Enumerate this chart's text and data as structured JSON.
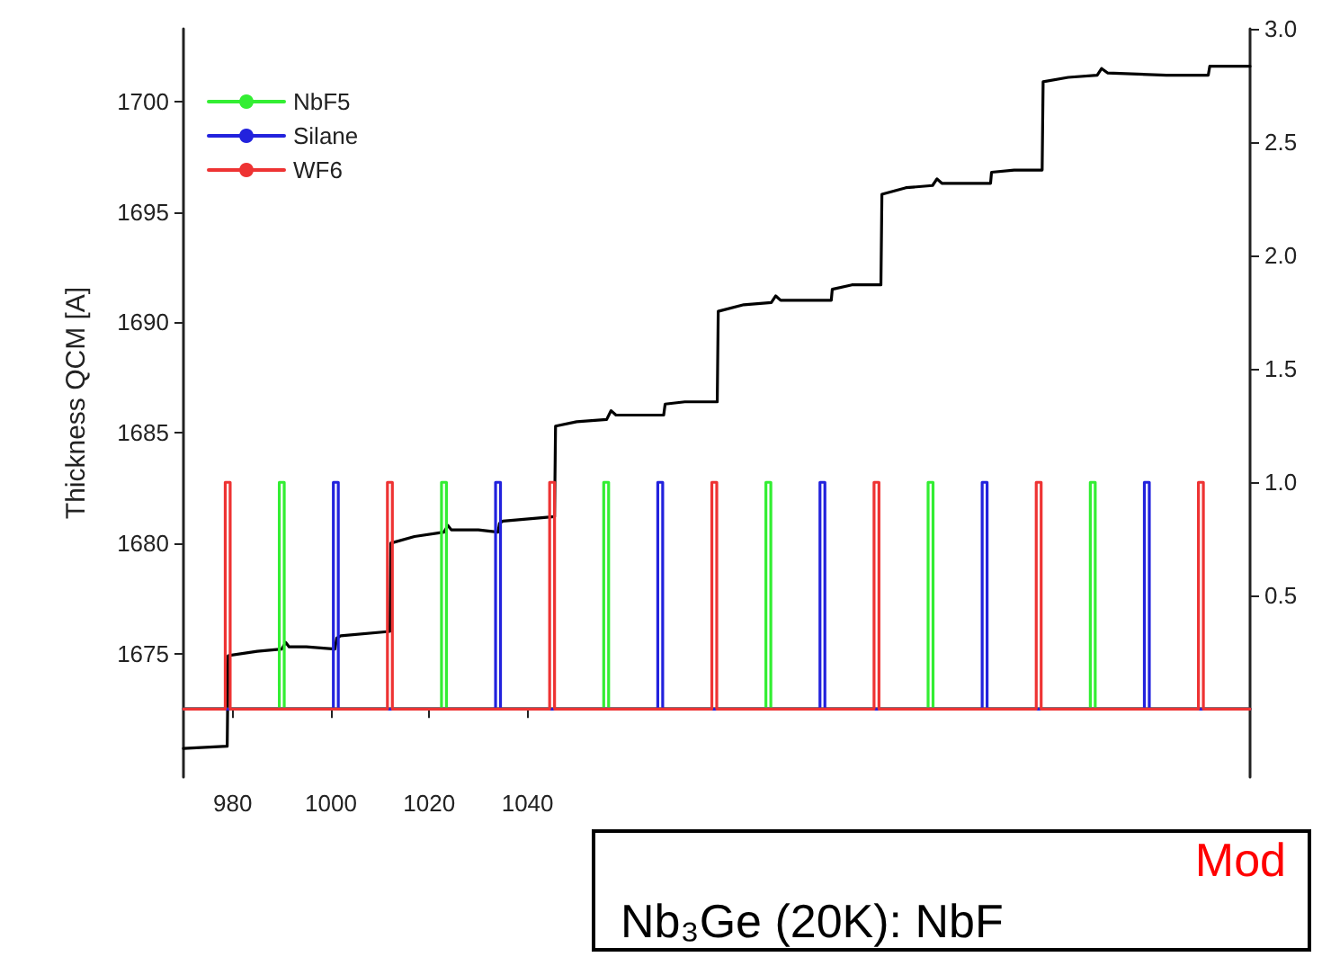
{
  "chart_data": {
    "type": "line",
    "ylabel": "Thickness QCM [A]",
    "xlim": [
      970,
      1187
    ],
    "xticks": [
      980,
      1000,
      1020,
      1040
    ],
    "ylim": [
      1669.4,
      1703.3
    ],
    "yticks": [
      1675,
      1680,
      1685,
      1690,
      1695,
      1700
    ],
    "y2lim": [
      -0.3,
      3.0
    ],
    "y2ticks": [
      {
        "value": 0.5,
        "label": "0.5"
      },
      {
        "value": 1,
        "label": "1.0"
      },
      {
        "value": 1.5,
        "label": "1.5"
      },
      {
        "value": 2,
        "label": "2.0"
      },
      {
        "value": 2.5,
        "label": "2.5"
      },
      {
        "value": 3,
        "label": "3.0"
      }
    ],
    "series": [
      {
        "color": "#000000",
        "x": [
          970,
          978.9,
          979.1,
          985,
          990,
          990.8,
          991.5,
          995,
          1000.8,
          1001.2,
          1002,
          1012,
          1012.2,
          1017,
          1023,
          1023.8,
          1024.5,
          1030,
          1034,
          1034.3,
          1035,
          1045.5,
          1045.7,
          1050,
          1056.1,
          1057,
          1058,
          1067.7,
          1068,
          1072,
          1078.6,
          1078.8,
          1084,
          1089.6,
          1090.5,
          1091.5,
          1101.8,
          1102,
          1106,
          1111.9,
          1112.1,
          1117,
          1122.4,
          1123.3,
          1124.3,
          1134.2,
          1134.4,
          1139,
          1144.7,
          1144.9,
          1150,
          1155.9,
          1156.8,
          1158,
          1170,
          1178.5,
          1178.8,
          1187
        ],
        "values": [
          1670.7,
          1670.8,
          1674.9,
          1675.1,
          1675.2,
          1675.5,
          1675.3,
          1675.3,
          1675.2,
          1675.7,
          1675.8,
          1676.0,
          1680.0,
          1680.3,
          1680.5,
          1680.8,
          1680.6,
          1680.6,
          1680.5,
          1680.9,
          1681.0,
          1681.2,
          1685.3,
          1685.5,
          1685.6,
          1686.0,
          1685.8,
          1685.8,
          1686.3,
          1686.4,
          1686.4,
          1690.5,
          1690.8,
          1690.9,
          1691.2,
          1691.0,
          1691.0,
          1691.5,
          1691.7,
          1691.7,
          1695.8,
          1696.1,
          1696.2,
          1696.5,
          1696.3,
          1696.3,
          1696.8,
          1696.9,
          1696.9,
          1700.9,
          1701.1,
          1701.2,
          1701.5,
          1701.3,
          1701.2,
          1701.2,
          1701.6,
          1701.6
        ]
      },
      {
        "name": "NbF5",
        "color": "#33ee33",
        "axis": "y2",
        "x": [
          970,
          989.5,
          989.5,
          990.5,
          990.5,
          1022.5,
          1022.5,
          1023.5,
          1023.5,
          1055.5,
          1055.5,
          1056.5,
          1056.5,
          1088.5,
          1088.5,
          1089.5,
          1089.5,
          1121.5,
          1121.5,
          1122.5,
          1122.5,
          1154.5,
          1154.5,
          1155.5,
          1155.5,
          1187
        ],
        "values": [
          0,
          0,
          1,
          1,
          0,
          0,
          1,
          1,
          0,
          0,
          1,
          1,
          0,
          0,
          1,
          1,
          0,
          0,
          1,
          1,
          0,
          0,
          1,
          1,
          0,
          0
        ]
      },
      {
        "name": "Silane",
        "color": "#2222dd",
        "axis": "y2",
        "x": [
          970,
          1000.5,
          1000.5,
          1001.5,
          1001.5,
          1033.5,
          1033.5,
          1034.5,
          1034.5,
          1066.5,
          1066.5,
          1067.5,
          1067.5,
          1099.5,
          1099.5,
          1100.5,
          1100.5,
          1132.5,
          1132.5,
          1133.5,
          1133.5,
          1165.5,
          1165.5,
          1166.5,
          1166.5,
          1187
        ],
        "values": [
          0,
          0,
          1,
          1,
          0,
          0,
          1,
          1,
          0,
          0,
          1,
          1,
          0,
          0,
          1,
          1,
          0,
          0,
          1,
          1,
          0,
          0,
          1,
          1,
          0,
          0
        ]
      },
      {
        "name": "WF6",
        "color": "#ee3333",
        "axis": "y2",
        "x": [
          970,
          978.5,
          978.5,
          979.5,
          979.5,
          1011.5,
          1011.5,
          1012.5,
          1012.5,
          1044.5,
          1044.5,
          1045.5,
          1045.5,
          1077.5,
          1077.5,
          1078.5,
          1078.5,
          1110.5,
          1110.5,
          1111.5,
          1111.5,
          1143.5,
          1143.5,
          1144.5,
          1144.5,
          1176.5,
          1176.5,
          1177.5,
          1177.5,
          1187
        ],
        "values": [
          0,
          0,
          1,
          1,
          0,
          0,
          1,
          1,
          0,
          0,
          1,
          1,
          0,
          0,
          1,
          1,
          0,
          0,
          1,
          1,
          0,
          0,
          1,
          1,
          0,
          0,
          1,
          1,
          0,
          0
        ]
      }
    ],
    "annotations": [
      "Mod",
      "Nb₃Ge (20K): NbF"
    ],
    "legend": "top left",
    "grid": false,
    "marker": "none",
    "line_style": "solid"
  }
}
